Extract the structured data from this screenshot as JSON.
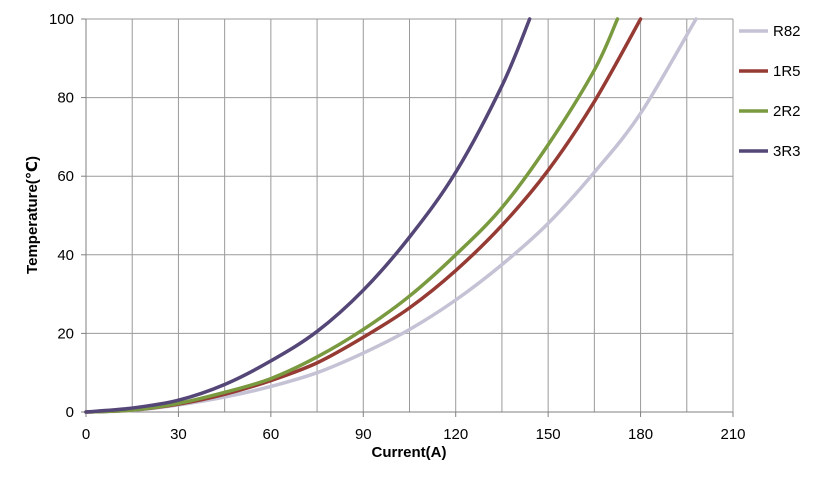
{
  "chart_data": {
    "type": "line",
    "title": "",
    "xlabel": "Current(A)",
    "ylabel": "Temperature(℃)",
    "xlim": [
      0,
      210
    ],
    "ylim": [
      0,
      100
    ],
    "x_ticks": [
      0,
      30,
      60,
      90,
      120,
      150,
      180,
      210
    ],
    "y_ticks": [
      0,
      20,
      40,
      60,
      80,
      100
    ],
    "x_minor_step": 15,
    "grid": true,
    "legend_position": "right",
    "series": [
      {
        "name": "R82",
        "color": "#c4c2d4",
        "x": [
          0,
          15,
          30,
          45,
          60,
          75,
          90,
          105,
          120,
          135,
          150,
          165,
          180,
          198
        ],
        "y": [
          0,
          0.4,
          1.8,
          3.8,
          6.5,
          10,
          15,
          21,
          28.5,
          37.5,
          48,
          61,
          76,
          100
        ]
      },
      {
        "name": "1R5",
        "color": "#963a34",
        "x": [
          0,
          15,
          30,
          45,
          60,
          75,
          90,
          105,
          120,
          135,
          150,
          165,
          180
        ],
        "y": [
          0,
          0.5,
          2,
          4.5,
          8,
          12.5,
          19,
          26.5,
          36,
          47.5,
          61.5,
          79,
          100
        ]
      },
      {
        "name": "2R2",
        "color": "#7a9a40",
        "x": [
          0,
          15,
          30,
          45,
          60,
          75,
          90,
          105,
          120,
          135,
          150,
          165,
          172.5
        ],
        "y": [
          0,
          0.5,
          2.2,
          5,
          8.5,
          14,
          21,
          29.5,
          40,
          52,
          68,
          87,
          100
        ]
      },
      {
        "name": "3R3",
        "color": "#544677",
        "x": [
          0,
          15,
          30,
          45,
          60,
          75,
          90,
          105,
          120,
          135,
          144
        ],
        "y": [
          0,
          1,
          3,
          7,
          13,
          20.5,
          31,
          44.5,
          61,
          83,
          100
        ]
      }
    ]
  }
}
